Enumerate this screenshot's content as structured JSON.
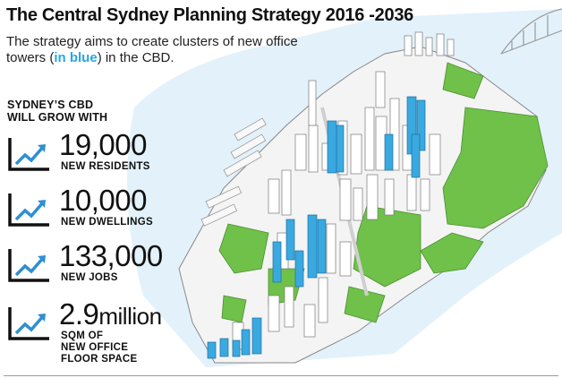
{
  "title": "The Central Sydney Planning Strategy 2016 -2036",
  "subtitle_before": "The strategy aims to create clusters of new office towers (",
  "subtitle_highlight": "in blue",
  "subtitle_after": ") in the CBD.",
  "grow_heading_line1": "SYDNEY’S CBD",
  "grow_heading_line2": "WILL GROW WITH",
  "stats": [
    {
      "value": "19,000",
      "unit": "",
      "label_lines": [
        "NEW RESIDENTS"
      ]
    },
    {
      "value": "10,000",
      "unit": "",
      "label_lines": [
        "NEW DWELLINGS"
      ]
    },
    {
      "value": "133,000",
      "unit": "",
      "label_lines": [
        "NEW JOBS"
      ]
    },
    {
      "value": "2.9",
      "unit": "million",
      "label_lines": [
        "SQM OF",
        "NEW OFFICE",
        "FLOOR SPACE"
      ]
    }
  ],
  "colors": {
    "highlight_blue": "#2aa7e0",
    "tower_blue": "#3aa9e0",
    "park_green": "#6fc14a",
    "harbour_blue": "#dceef8",
    "icon_blue": "#2f8fd2"
  },
  "icon": "growth-chart-icon"
}
